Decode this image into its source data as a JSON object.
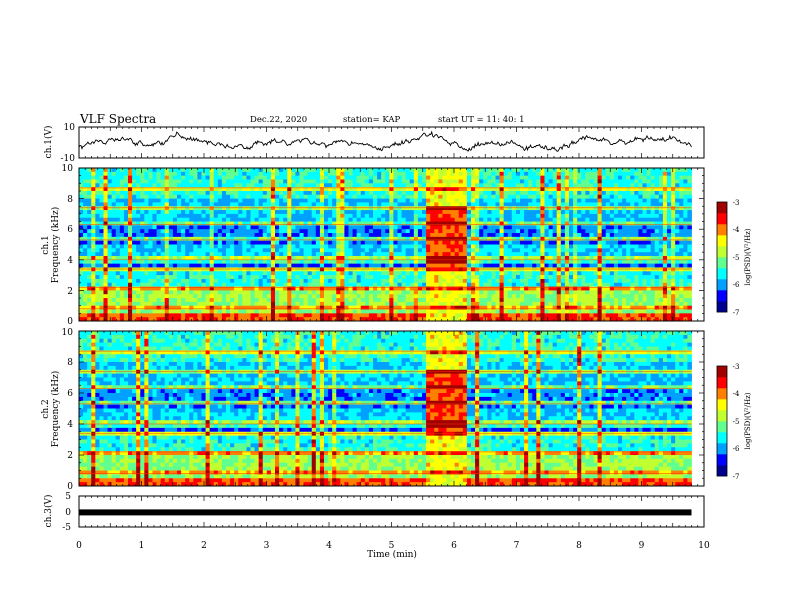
{
  "header": {
    "title": "VLF Spectra",
    "date": "Dec.22, 2020",
    "station": "station= KAP",
    "start": "start  UT =   11: 40: 1"
  },
  "chart_data": [
    {
      "type": "line",
      "panel": "ch1-waveform",
      "ylabel": "ch.1(V)",
      "ylim": [
        -10,
        10
      ],
      "y_ticks": [
        "10",
        "-10"
      ],
      "x_range_min": [
        0,
        9.8
      ],
      "description_series_color": "#000000"
    },
    {
      "type": "heatmap",
      "panel": "ch1-spectrogram",
      "ylabel": "ch.1 Frequency (kHz)",
      "ylabel_lines": [
        "ch.1",
        "Frequency (kHz)"
      ],
      "ylim": [
        0,
        10
      ],
      "y_ticks": [
        "0",
        "2",
        "4",
        "6",
        "8",
        "10"
      ],
      "x_range_min": [
        0,
        9.8
      ],
      "broadband_burst_min": [
        5.55,
        6.2
      ],
      "colorbar": {
        "label": "log(PSD)(V²/Hz)",
        "range": [
          -7,
          -3
        ],
        "ticks": [
          "-3",
          "-4",
          "-5",
          "-6",
          "-7"
        ]
      }
    },
    {
      "type": "heatmap",
      "panel": "ch2-spectrogram",
      "ylabel": "ch.2 Frequency (kHz)",
      "ylabel_lines": [
        "ch.2",
        "Frequency (kHz)"
      ],
      "ylim": [
        0,
        10
      ],
      "y_ticks": [
        "0",
        "2",
        "4",
        "6",
        "8",
        "10"
      ],
      "x_range_min": [
        0,
        9.8
      ],
      "broadband_burst_min": [
        5.55,
        6.2
      ],
      "colorbar": {
        "label": "log(PSD)(V²/Hz)",
        "range": [
          -7,
          -3
        ],
        "ticks": [
          "-3",
          "-4",
          "-5",
          "-6",
          "-7"
        ]
      }
    },
    {
      "type": "line",
      "panel": "ch3-waveform",
      "ylabel": "ch.3(V)",
      "ylim": [
        -5,
        5
      ],
      "y_ticks": [
        "5",
        "0",
        "-5"
      ],
      "x_range_min": [
        0,
        9.8
      ],
      "constant_value": -0.3
    }
  ],
  "x_axis": {
    "label": "Time  (min)",
    "min": 0,
    "max": 10,
    "ticks": [
      "0",
      "1",
      "2",
      "3",
      "4",
      "5",
      "6",
      "7",
      "8",
      "9",
      "10"
    ]
  },
  "colors": {
    "colormap": [
      "#00008f",
      "#0000ff",
      "#00a0ff",
      "#00ffff",
      "#60ff90",
      "#c0ff30",
      "#ffff00",
      "#ff8000",
      "#ff0000",
      "#a00000"
    ]
  }
}
